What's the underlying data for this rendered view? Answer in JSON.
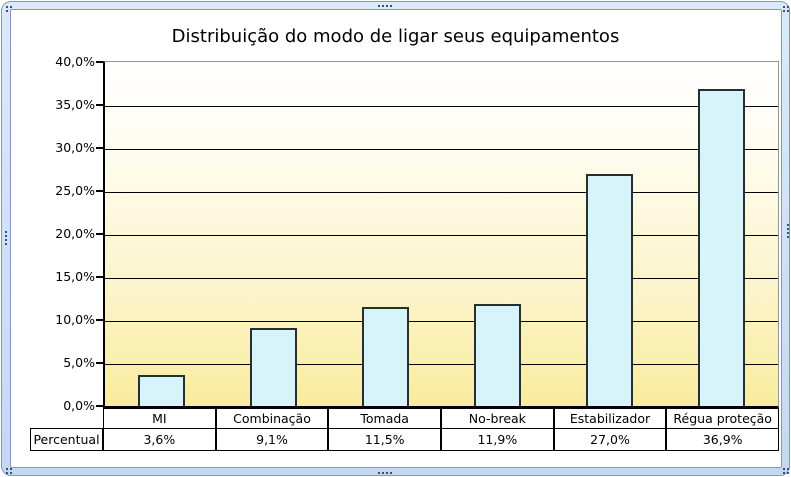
{
  "window": {
    "kind": "embedded chart object with selection frame"
  },
  "colors": {
    "frame_fill": "#C5D8F0",
    "frame_fill_light": "#DDE9F7",
    "frame_border": "#7E99C6",
    "handle_dot": "#33517E",
    "canvas_bg": "#FFFFFF",
    "plot_bg_top": "#FFFFFF",
    "plot_bg_bottom": "#F9EC9D",
    "plot_border": "#969696",
    "axis_line": "#000000",
    "gridline": "#000000",
    "bar_fill": "#D7F4FA",
    "bar_border": "#233230",
    "table_border": "#000000",
    "text": "#000000"
  },
  "chart_data": {
    "type": "bar",
    "title": "Distribuição do modo de ligar seus equipamentos",
    "categories": [
      "MI",
      "Combinação",
      "Tomada",
      "No-break",
      "Estabilizador",
      "Régua proteção"
    ],
    "series": [
      {
        "name": "Percentual",
        "values": [
          3.6,
          9.1,
          11.5,
          11.9,
          27.0,
          36.9
        ],
        "value_labels": [
          "3,6%",
          "9,1%",
          "11,5%",
          "11,9%",
          "27,0%",
          "36,9%"
        ]
      }
    ],
    "xlabel": "",
    "ylabel": "",
    "ylim": [
      0,
      40
    ],
    "y_ticks": [
      {
        "value": 40,
        "label": "40,0%"
      },
      {
        "value": 35,
        "label": "35,0%"
      },
      {
        "value": 30,
        "label": "30,0%"
      },
      {
        "value": 25,
        "label": "25,0%"
      },
      {
        "value": 20,
        "label": "20,0%"
      },
      {
        "value": 15,
        "label": "15,0%"
      },
      {
        "value": 10,
        "label": "10,0%"
      },
      {
        "value": 5,
        "label": "5,0%"
      },
      {
        "value": 0,
        "label": "0,0%"
      }
    ],
    "grid": true,
    "legend": false,
    "data_table": true,
    "data_table_row_header": "Percentual"
  }
}
